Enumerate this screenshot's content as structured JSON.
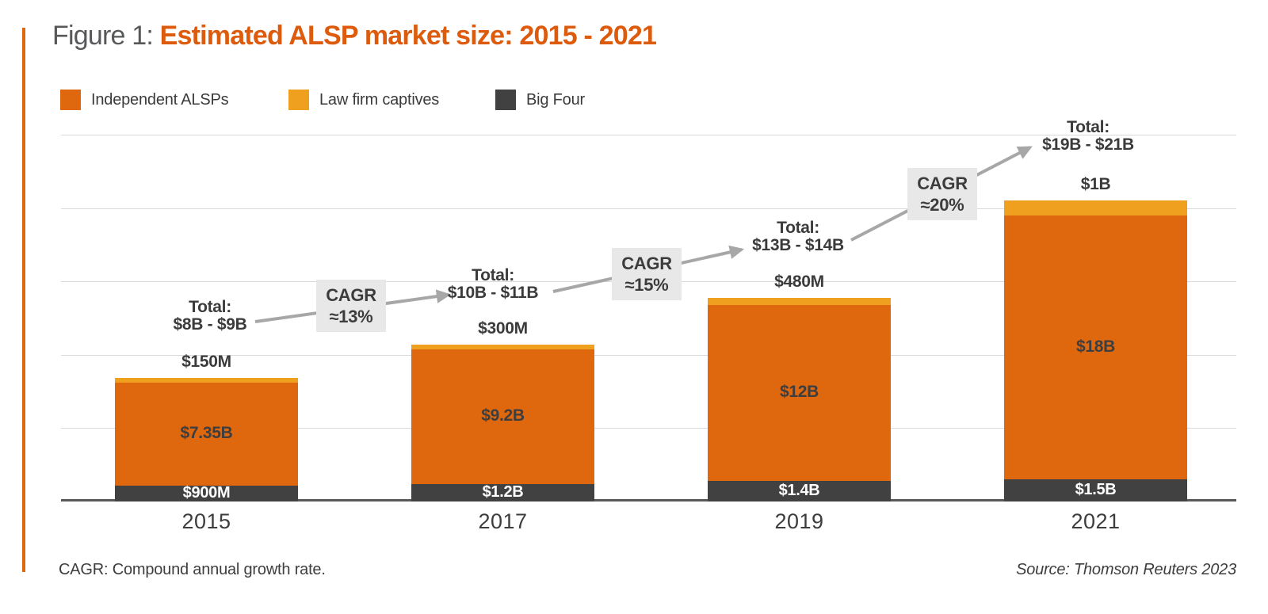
{
  "figure": {
    "label": "Figure 1: ",
    "title": "Estimated ALSP market size: 2015 - 2021"
  },
  "legend": [
    {
      "label": "Independent ALSPs",
      "color": "#DF670E"
    },
    {
      "label": "Law firm captives",
      "color": "#F0A01F"
    },
    {
      "label": "Big Four",
      "color": "#414141"
    }
  ],
  "footer": {
    "note": "CAGR: Compound annual growth rate.",
    "source": "Source: Thomson Reuters 2023"
  },
  "colors": {
    "title_orange": "#DD5B0D",
    "figure_label_gray": "#57585A",
    "independent_orange": "#DF670E",
    "captives_amber": "#F0A01F",
    "big_four_charcoal": "#414141",
    "arrow_gray": "#A7A7A7",
    "cagr_box_bg": "#E8E8E8",
    "grid_line": "#D9D9D9",
    "axis_line": "#58595B"
  },
  "chart_data": {
    "type": "bar",
    "stacked": true,
    "unit": "USD billions",
    "title": "Estimated ALSP market size: 2015 - 2021",
    "categories": [
      "2015",
      "2017",
      "2019",
      "2021"
    ],
    "series": [
      {
        "name": "Big Four",
        "color": "#414141",
        "values": [
          0.9,
          1.2,
          1.4,
          1.5
        ],
        "labels": [
          "$900M",
          "$1.2B",
          "$1.4B",
          "$1.5B"
        ]
      },
      {
        "name": "Independent ALSPs",
        "color": "#DF670E",
        "values": [
          7.35,
          9.2,
          12,
          18
        ],
        "labels": [
          "$7.35B",
          "$9.2B",
          "$12B",
          "$18B"
        ]
      },
      {
        "name": "Law firm captives",
        "color": "#F0A01F",
        "values": [
          0.15,
          0.3,
          0.48,
          1.0
        ],
        "labels": [
          "$150M",
          "$300M",
          "$480M",
          "$1B"
        ]
      }
    ],
    "totals": [
      {
        "title": "Total:",
        "range": "$8B - $9B"
      },
      {
        "title": "Total:",
        "range": "$10B - $11B"
      },
      {
        "title": "Total:",
        "range": "$13B - $14B"
      },
      {
        "title": "Total:",
        "range": "$19B - $21B"
      }
    ],
    "cagr_annotations": [
      {
        "line1": "CAGR",
        "line2": "≈13%"
      },
      {
        "line1": "CAGR",
        "line2": "≈15%"
      },
      {
        "line1": "CAGR",
        "line2": "≈20%"
      }
    ],
    "ylim": [
      0,
      25
    ],
    "gridline_step": 5,
    "y_axis_labels_shown": false,
    "grid": true,
    "legend_position": "top-left"
  }
}
